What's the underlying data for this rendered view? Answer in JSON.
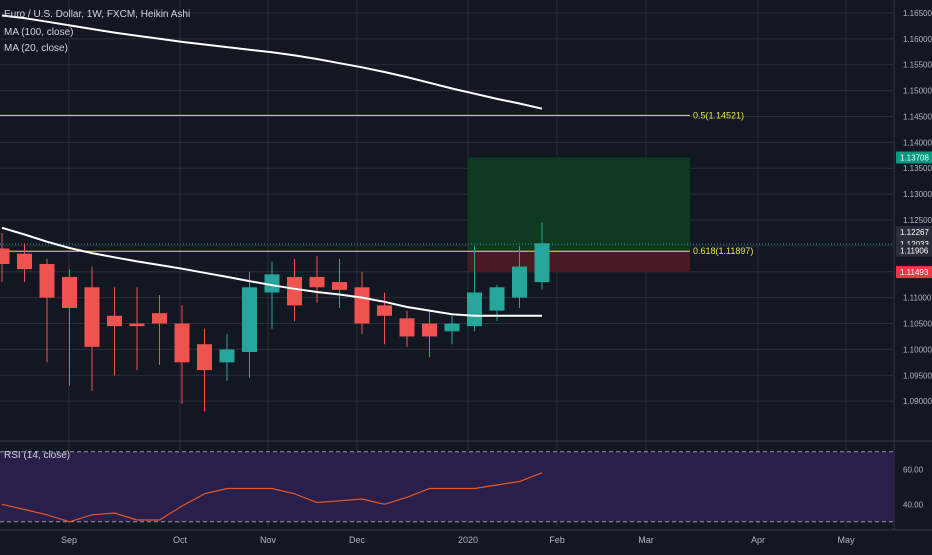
{
  "legend": {
    "symbol": "Euro / U.S. Dollar, 1W, FXCM, Heikin Ashi",
    "ma100": "MA (100, close)",
    "ma20": "MA (20, close)",
    "rsi": "RSI (14, close)"
  },
  "colors": {
    "background": "#131722",
    "grid": "#2a2e39",
    "bull": "#26a69a",
    "bear": "#ef5350",
    "ma": "#ffffff",
    "fib": "#e8e84a",
    "rsi_line": "#e0582a",
    "rsi_bg": "#2a1f4a",
    "target": "#0e3a22",
    "stop": "#4a1a24"
  },
  "chart_data": [
    {
      "type": "candlestick",
      "title": "Euro / U.S. Dollar, 1W, FXCM, Heikin Ashi",
      "ylim": [
        1.0825,
        1.1675
      ],
      "y_ticks": [
        "1.09000",
        "1.09500",
        "1.10000",
        "1.10500",
        "1.11000",
        "1.11500",
        "1.12000",
        "1.12500",
        "1.13000",
        "1.13500",
        "1.14000",
        "1.14500",
        "1.15000",
        "1.15500",
        "1.16000",
        "1.16500"
      ],
      "x_ticks": [
        "Sep",
        "Oct",
        "Nov",
        "Dec",
        "2020",
        "Feb",
        "Mar",
        "Apr",
        "May"
      ],
      "candles": [
        {
          "o": 1.1195,
          "h": 1.1225,
          "l": 1.113,
          "c": 1.1165
        },
        {
          "o": 1.1185,
          "h": 1.1205,
          "l": 1.113,
          "c": 1.1155
        },
        {
          "o": 1.1165,
          "h": 1.1175,
          "l": 1.0975,
          "c": 1.11
        },
        {
          "o": 1.114,
          "h": 1.1155,
          "l": 1.093,
          "c": 1.108
        },
        {
          "o": 1.112,
          "h": 1.116,
          "l": 1.092,
          "c": 1.1005
        },
        {
          "o": 1.1065,
          "h": 1.112,
          "l": 1.095,
          "c": 1.1045
        },
        {
          "o": 1.105,
          "h": 1.112,
          "l": 1.096,
          "c": 1.1045
        },
        {
          "o": 1.107,
          "h": 1.1105,
          "l": 1.097,
          "c": 1.105
        },
        {
          "o": 1.105,
          "h": 1.1085,
          "l": 1.0895,
          "c": 1.0975
        },
        {
          "o": 1.101,
          "h": 1.104,
          "l": 1.088,
          "c": 1.096
        },
        {
          "o": 1.0975,
          "h": 1.103,
          "l": 1.094,
          "c": 1.1
        },
        {
          "o": 1.0995,
          "h": 1.115,
          "l": 1.0945,
          "c": 1.112
        },
        {
          "o": 1.111,
          "h": 1.117,
          "l": 1.104,
          "c": 1.1145
        },
        {
          "o": 1.114,
          "h": 1.1175,
          "l": 1.1055,
          "c": 1.1085
        },
        {
          "o": 1.114,
          "h": 1.118,
          "l": 1.109,
          "c": 1.112
        },
        {
          "o": 1.113,
          "h": 1.1175,
          "l": 1.108,
          "c": 1.1115
        },
        {
          "o": 1.112,
          "h": 1.115,
          "l": 1.103,
          "c": 1.105
        },
        {
          "o": 1.1085,
          "h": 1.111,
          "l": 1.101,
          "c": 1.1065
        },
        {
          "o": 1.106,
          "h": 1.1075,
          "l": 1.1005,
          "c": 1.1025
        },
        {
          "o": 1.105,
          "h": 1.1075,
          "l": 1.0985,
          "c": 1.1025
        },
        {
          "o": 1.1035,
          "h": 1.1065,
          "l": 1.101,
          "c": 1.105
        },
        {
          "o": 1.1045,
          "h": 1.12,
          "l": 1.1035,
          "c": 1.111
        },
        {
          "o": 1.1075,
          "h": 1.1125,
          "l": 1.1055,
          "c": 1.112
        },
        {
          "o": 1.11,
          "h": 1.12,
          "l": 1.108,
          "c": 1.116
        },
        {
          "o": 1.113,
          "h": 1.1245,
          "l": 1.1115,
          "c": 1.1205
        }
      ],
      "ma100": [
        1.1645,
        1.164,
        1.1633,
        1.1626,
        1.1619,
        1.1612,
        1.1606,
        1.16,
        1.1594,
        1.1589,
        1.1584,
        1.1579,
        1.1574,
        1.1568,
        1.1561,
        1.1553,
        1.1545,
        1.1536,
        1.1526,
        1.1515,
        1.1504,
        1.1494,
        1.1484,
        1.1475,
        1.1465
      ],
      "ma20": [
        1.1235,
        1.1222,
        1.1208,
        1.1196,
        1.1186,
        1.1178,
        1.117,
        1.1163,
        1.1156,
        1.1148,
        1.114,
        1.1132,
        1.1124,
        1.1117,
        1.1111,
        1.1106,
        1.11,
        1.1092,
        1.1082,
        1.1075,
        1.1068,
        1.1065,
        1.1065,
        1.1065,
        1.1065
      ],
      "fib_levels": [
        {
          "label": "0.5(1.14521)",
          "value": 1.14521
        },
        {
          "label": "0.618(1.11897)",
          "value": 1.11897
        }
      ],
      "position": {
        "entry": 1.11906,
        "target": 1.13708,
        "stop": 1.11493
      },
      "price_tags": [
        {
          "value": 1.13708,
          "text": "1.13708",
          "color": "#089981"
        },
        {
          "value": 1.12267,
          "text": "1.12267",
          "color": "#2a2e39"
        },
        {
          "value": 1.12033,
          "text": "1.12033",
          "color": "#2a2e39"
        },
        {
          "value": 1.11906,
          "text": "1.11906",
          "color": "#2a2e39"
        },
        {
          "value": 1.11493,
          "text": "1.11493",
          "color": "#f23645"
        }
      ],
      "current_price": 1.12033
    },
    {
      "type": "line",
      "title": "RSI (14, close)",
      "y_ticks": [
        "60.00",
        "40.00"
      ],
      "ylim": [
        27,
        75
      ],
      "bands": [
        70,
        30
      ],
      "values": [
        40,
        37,
        34,
        30,
        34,
        35,
        31,
        31,
        39,
        46,
        49,
        49,
        49,
        46,
        41,
        42,
        43,
        40,
        44,
        49,
        49,
        49,
        51,
        53,
        58
      ]
    }
  ]
}
